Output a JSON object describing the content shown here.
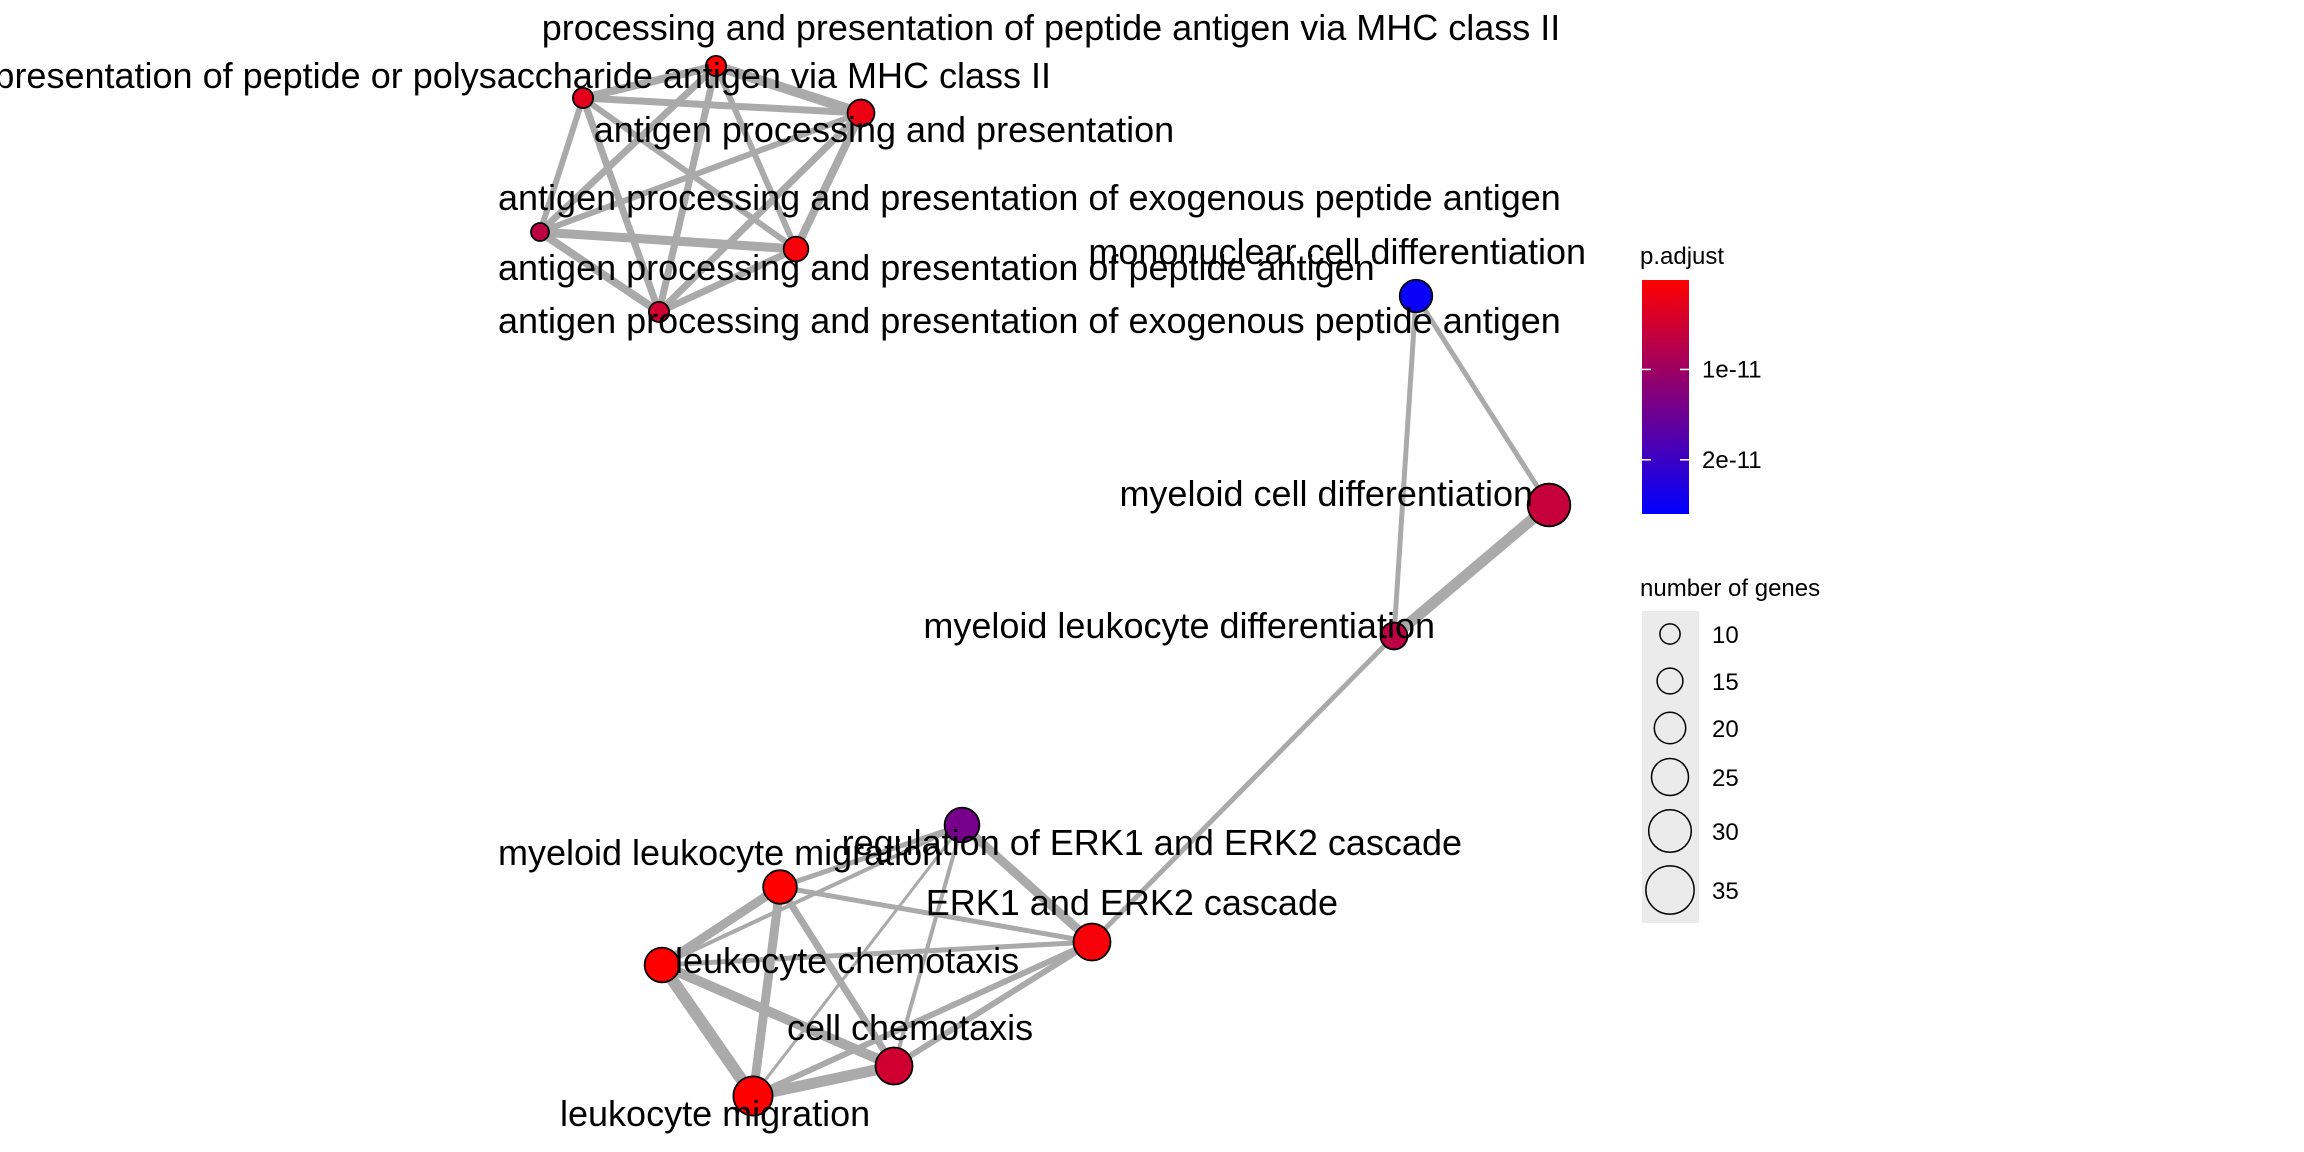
{
  "network": {
    "nodes": [
      {
        "id": "n1",
        "label": "processing and presentation of peptide antigen via MHC class II",
        "genes": 10,
        "p_adjust": 1e-13
      },
      {
        "id": "n2",
        "label": "presentation of peptide or polysaccharide antigen via MHC class II",
        "genes": 16,
        "p_adjust": 2e-12
      },
      {
        "id": "n3",
        "label": "antigen processing and presentation",
        "genes": 10,
        "p_adjust": 3e-12
      },
      {
        "id": "n4",
        "label": "antigen processing and presentation of exogenous peptide antigen",
        "genes": 8,
        "p_adjust": 7e-12
      },
      {
        "id": "n5",
        "label": "antigen processing and presentation of peptide antigen",
        "genes": 14,
        "p_adjust": 1e-12
      },
      {
        "id": "n6",
        "label": "antigen processing and presentation of exogenous peptide antigen",
        "genes": 10,
        "p_adjust": 5e-12
      },
      {
        "id": "n7",
        "label": "mononuclear cell differentiation",
        "genes": 21,
        "p_adjust": 2.5e-11
      },
      {
        "id": "n8",
        "label": "myeloid cell differentiation",
        "genes": 30,
        "p_adjust": 6e-12
      },
      {
        "id": "n9",
        "label": "myeloid leukocyte differentiation",
        "genes": 16,
        "p_adjust": 7e-12
      },
      {
        "id": "n10",
        "label": "regulation of ERK1 and ERK2 cascade",
        "genes": 23,
        "p_adjust": 1.4e-11
      },
      {
        "id": "n11",
        "label": "myeloid leukocyte migration",
        "genes": 22,
        "p_adjust": 1e-13
      },
      {
        "id": "n12",
        "label": "ERK1 and ERK2 cascade",
        "genes": 25,
        "p_adjust": 1e-12
      },
      {
        "id": "n13",
        "label": "leukocyte chemotaxis",
        "genes": 23,
        "p_adjust": 1e-13
      },
      {
        "id": "n14",
        "label": "cell chemotaxis",
        "genes": 25,
        "p_adjust": 5e-12
      },
      {
        "id": "n15",
        "label": "leukocyte migration",
        "genes": 27,
        "p_adjust": 1e-13
      }
    ],
    "edges": [
      {
        "s": "n1",
        "t": "n2",
        "w": 10
      },
      {
        "s": "n1",
        "t": "n4",
        "w": 7
      },
      {
        "s": "n1",
        "t": "n5",
        "w": 6
      },
      {
        "s": "n1",
        "t": "n6",
        "w": 7
      },
      {
        "s": "n1",
        "t": "n3",
        "w": 8
      },
      {
        "s": "n2",
        "t": "n4",
        "w": 6
      },
      {
        "s": "n2",
        "t": "n5",
        "w": 8
      },
      {
        "s": "n2",
        "t": "n6",
        "w": 7
      },
      {
        "s": "n2",
        "t": "n3",
        "w": 7
      },
      {
        "s": "n4",
        "t": "n5",
        "w": 9
      },
      {
        "s": "n4",
        "t": "n6",
        "w": 8
      },
      {
        "s": "n5",
        "t": "n6",
        "w": 7
      },
      {
        "s": "n3",
        "t": "n4",
        "w": 6
      },
      {
        "s": "n3",
        "t": "n5",
        "w": 6
      },
      {
        "s": "n3",
        "t": "n6",
        "w": 7
      },
      {
        "s": "n7",
        "t": "n8",
        "w": 5
      },
      {
        "s": "n7",
        "t": "n9",
        "w": 5
      },
      {
        "s": "n8",
        "t": "n9",
        "w": 11
      },
      {
        "s": "n9",
        "t": "n12",
        "w": 5
      },
      {
        "s": "n10",
        "t": "n11",
        "w": 5
      },
      {
        "s": "n10",
        "t": "n12",
        "w": 9
      },
      {
        "s": "n10",
        "t": "n13",
        "w": 4
      },
      {
        "s": "n10",
        "t": "n14",
        "w": 4
      },
      {
        "s": "n10",
        "t": "n15",
        "w": 3
      },
      {
        "s": "n11",
        "t": "n13",
        "w": 9
      },
      {
        "s": "n11",
        "t": "n14",
        "w": 7
      },
      {
        "s": "n11",
        "t": "n15",
        "w": 9
      },
      {
        "s": "n11",
        "t": "n12",
        "w": 5
      },
      {
        "s": "n12",
        "t": "n13",
        "w": 5
      },
      {
        "s": "n12",
        "t": "n14",
        "w": 6
      },
      {
        "s": "n12",
        "t": "n15",
        "w": 6
      },
      {
        "s": "n13",
        "t": "n14",
        "w": 10
      },
      {
        "s": "n13",
        "t": "n15",
        "w": 12
      },
      {
        "s": "n14",
        "t": "n15",
        "w": 11
      }
    ]
  },
  "legend": {
    "color": {
      "title": "p.adjust",
      "low_color": "#FF0000",
      "high_color": "#0000FF",
      "ticks": [
        {
          "label": "1e-11",
          "value": 1e-11
        },
        {
          "label": "2e-11",
          "value": 2e-11
        }
      ]
    },
    "size": {
      "title": "number of genes",
      "entries": [
        {
          "label": "10",
          "value": 10
        },
        {
          "label": "15",
          "value": 15
        },
        {
          "label": "20",
          "value": 20
        },
        {
          "label": "25",
          "value": 25
        },
        {
          "label": "30",
          "value": 30
        },
        {
          "label": "35",
          "value": 35
        }
      ]
    }
  },
  "style": {
    "edge_color": "#AAAAAA",
    "node_stroke": "#000000",
    "legend_key_bg": "#EBEBEB"
  }
}
